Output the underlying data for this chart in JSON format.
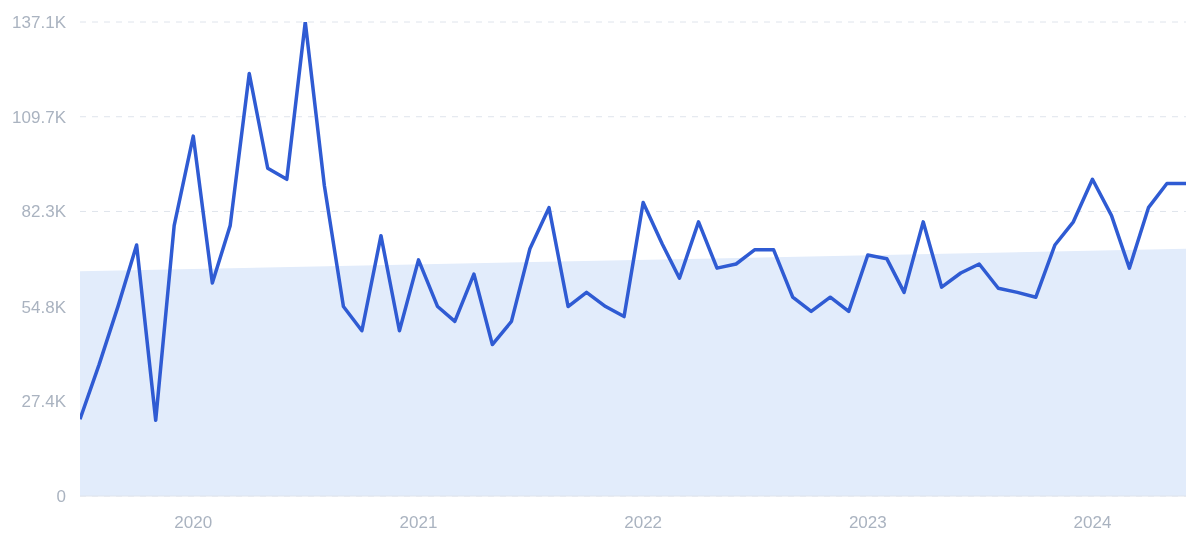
{
  "chart_data": {
    "type": "line",
    "x": [
      "2019-07",
      "2019-08",
      "2019-09",
      "2019-10",
      "2019-11",
      "2019-12",
      "2020-01",
      "2020-02",
      "2020-03",
      "2020-04",
      "2020-05",
      "2020-06",
      "2020-07",
      "2020-08",
      "2020-09",
      "2020-10",
      "2020-11",
      "2020-12",
      "2021-01",
      "2021-02",
      "2021-03",
      "2021-04",
      "2021-05",
      "2021-06",
      "2021-07",
      "2021-08",
      "2021-09",
      "2021-10",
      "2021-11",
      "2021-12",
      "2022-01",
      "2022-02",
      "2022-03",
      "2022-04",
      "2022-05",
      "2022-06",
      "2022-07",
      "2022-08",
      "2022-09",
      "2022-10",
      "2022-11",
      "2022-12",
      "2023-01",
      "2023-02",
      "2023-03",
      "2023-04",
      "2023-05",
      "2023-06",
      "2023-07",
      "2023-08",
      "2023-09",
      "2023-10",
      "2023-11",
      "2023-12",
      "2024-01",
      "2024-02",
      "2024-03",
      "2024-04",
      "2024-05",
      "2024-06"
    ],
    "series": [
      {
        "type": "area",
        "color": "#e2ecfb",
        "x": [
          "2019-07",
          "2024-06"
        ],
        "values": [
          65000,
          71500
        ]
      },
      {
        "color": "#2f5bd3",
        "values": [
          22200,
          38000,
          55000,
          72600,
          21900,
          78200,
          104100,
          61600,
          78200,
          122200,
          94800,
          91600,
          137100,
          89800,
          54800,
          47800,
          75300,
          47800,
          68300,
          54800,
          50500,
          64200,
          43800,
          50500,
          71500,
          83400,
          54800,
          58900,
          54800,
          51900,
          84900,
          72900,
          63000,
          79300,
          65900,
          67100,
          71200,
          71200,
          57500,
          53400,
          57500,
          53400,
          69700,
          68600,
          58900,
          79300,
          60400,
          64500,
          67100,
          60100,
          58900,
          57500,
          72600,
          79300,
          91600,
          81100,
          65900,
          83400,
          90400,
          90400
        ]
      }
    ],
    "xlim": [
      "2019-07",
      "2024-06"
    ],
    "xticks": [
      {
        "value": "2020-01",
        "label": "2020"
      },
      {
        "value": "2021-01",
        "label": "2021"
      },
      {
        "value": "2022-01",
        "label": "2022"
      },
      {
        "value": "2023-01",
        "label": "2023"
      },
      {
        "value": "2024-01",
        "label": "2024"
      }
    ],
    "ylim": [
      0,
      137100
    ],
    "yticks": [
      0,
      {
        "value": 27400,
        "label": "27.4K"
      },
      {
        "value": 54800,
        "label": "54.8K"
      },
      {
        "value": 82300,
        "label": "82.3K"
      },
      {
        "value": 109700,
        "label": "109.7K"
      },
      {
        "value": 137100,
        "label": "137.1K"
      }
    ],
    "grid": "y",
    "marker": "none",
    "line_style": "solid"
  }
}
